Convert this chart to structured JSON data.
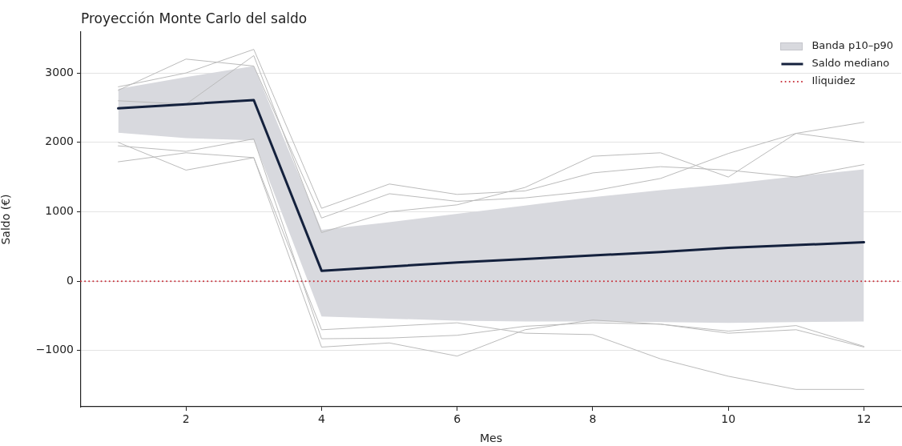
{
  "chart_data": {
    "type": "line",
    "title": "Proyección Monte Carlo del saldo",
    "xlabel": "Mes",
    "ylabel": "Saldo (€)",
    "x": [
      1,
      2,
      3,
      4,
      5,
      6,
      7,
      8,
      9,
      10,
      11,
      12
    ],
    "xlim": [
      0.45,
      12.55
    ],
    "xticks": [
      2,
      4,
      6,
      8,
      10,
      12
    ],
    "ylim": [
      -1810,
      3590
    ],
    "yticks": [
      {
        "value": -1000,
        "label": "−1000"
      },
      0,
      1000,
      2000,
      3000
    ],
    "annotations": [
      "Banda p10–p90"
    ],
    "series": [
      {
        "name": "Saldo mediano",
        "color": "#14213d",
        "values": [
          2490,
          2550,
          2610,
          150,
          210,
          270,
          320,
          370,
          420,
          480,
          520,
          560
        ],
        "lower": [
          2140,
          2060,
          2030,
          -510,
          -540,
          -570,
          -580,
          -580,
          -590,
          -600,
          -590,
          -580
        ],
        "upper": [
          2770,
          2940,
          3100,
          740,
          850,
          970,
          1090,
          1210,
          1310,
          1400,
          1510,
          1610
        ]
      },
      {
        "color": "#bbbbbb",
        "values": [
          1720,
          1850,
          1780,
          -950,
          -890,
          -1080,
          -700,
          -560,
          -620,
          -720,
          -640,
          -940
        ]
      },
      {
        "color": "#bbbbbb",
        "values": [
          2800,
          3000,
          3340,
          1050,
          1400,
          1250,
          1300,
          1560,
          1650,
          1600,
          1500,
          1680
        ]
      },
      {
        "color": "#bbbbbb",
        "values": [
          2750,
          3200,
          3100,
          910,
          1260,
          1150,
          1200,
          1300,
          1480,
          1840,
          2130,
          2290
        ]
      },
      {
        "color": "#bbbbbb",
        "values": [
          2000,
          1600,
          1780,
          -700,
          -650,
          -600,
          -750,
          -770,
          -1120,
          -1370,
          -1560,
          -1560
        ]
      },
      {
        "color": "#bbbbbb",
        "values": [
          1950,
          1870,
          2050,
          -830,
          -820,
          -780,
          -650,
          -600,
          -620,
          -750,
          -700,
          -950
        ]
      },
      {
        "color": "#bbbbbb",
        "values": [
          2600,
          2550,
          3250,
          700,
          1000,
          1100,
          1350,
          1800,
          1850,
          1500,
          2130,
          2000
        ]
      }
    ],
    "ref_lines": [
      {
        "axis": "y",
        "value": 0,
        "label": "Iliquidez",
        "color": "#c8323c",
        "line_style": "dotted"
      }
    ],
    "grid": "y",
    "legend": "top right",
    "marker": "none"
  }
}
